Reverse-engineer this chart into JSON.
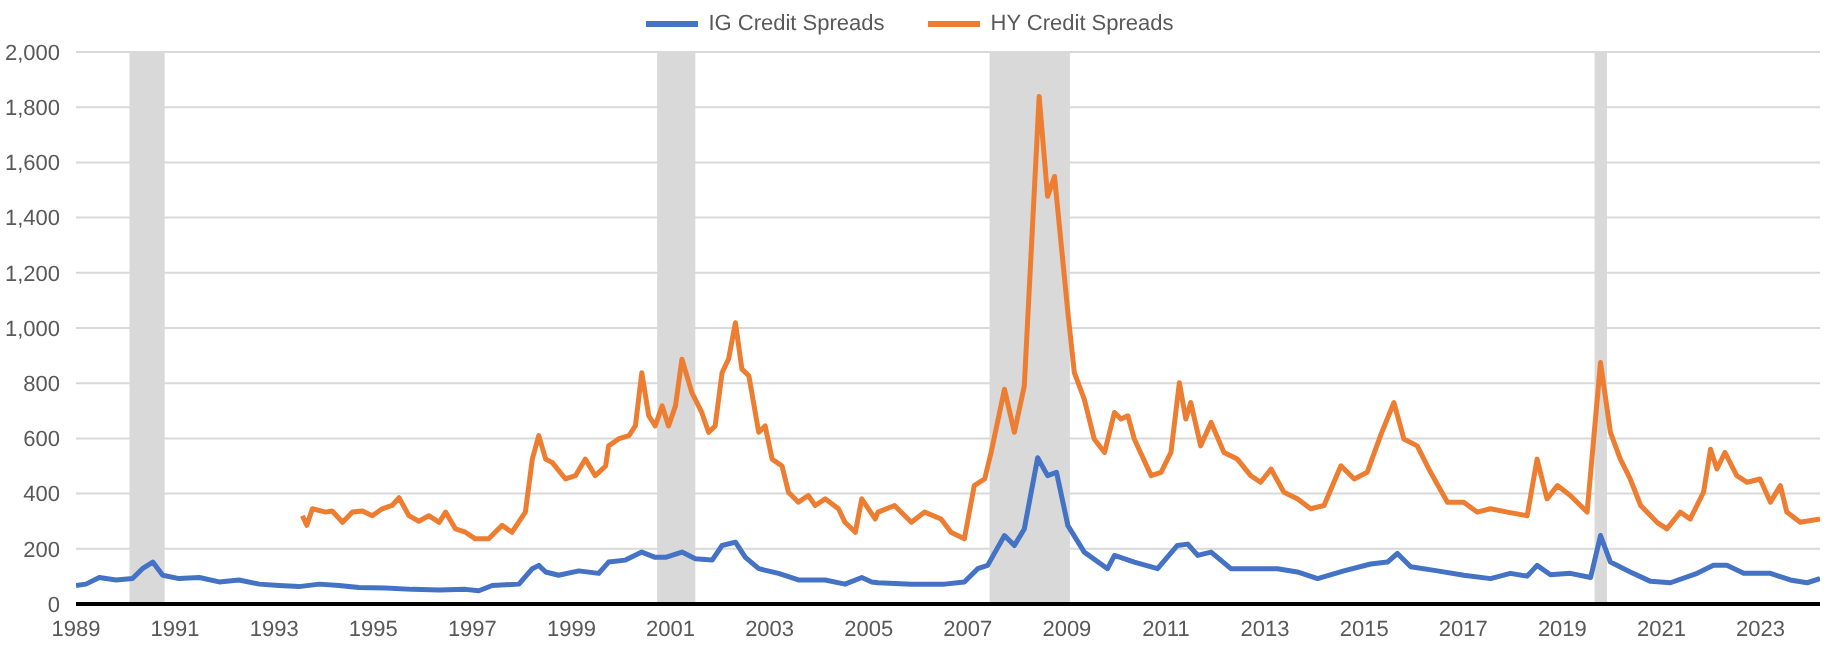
{
  "chart_data": {
    "type": "line",
    "legend": "top",
    "grid": "y",
    "marker": "none",
    "line_style": "solid",
    "xlim": [
      1989,
      2024.2
    ],
    "xticks": [
      1989,
      1991,
      1993,
      1995,
      1997,
      1999,
      2001,
      2003,
      2005,
      2007,
      2009,
      2011,
      2013,
      2015,
      2017,
      2019,
      2021,
      2023
    ],
    "ylim": [
      0,
      2000
    ],
    "yticks": [
      0,
      200,
      400,
      600,
      800,
      {
        "value": 1000,
        "label": "1,000"
      },
      {
        "value": 1200,
        "label": "1,200"
      },
      {
        "value": 1400,
        "label": "1,400"
      },
      {
        "value": 1600,
        "label": "1,600"
      },
      {
        "value": 1800,
        "label": "1,800"
      },
      {
        "value": 2000,
        "label": "2,000"
      }
    ],
    "bands": [
      {
        "axis": "x",
        "from": 1990.08,
        "to": 1990.79,
        "color": "#d9d9d9"
      },
      {
        "axis": "x",
        "from": 2000.73,
        "to": 2001.5,
        "color": "#d9d9d9"
      },
      {
        "axis": "x",
        "from": 2007.44,
        "to": 2009.06,
        "color": "#d9d9d9"
      },
      {
        "axis": "x",
        "from": 2019.65,
        "to": 2019.9,
        "color": "#d9d9d9"
      }
    ],
    "series": [
      {
        "name": "IG Credit Spreads",
        "color": "#4472c4",
        "x": [
          1989.0,
          1989.2,
          1989.47,
          1989.81,
          1990.14,
          1990.34,
          1990.55,
          1990.75,
          1991.08,
          1991.49,
          1991.89,
          1992.29,
          1992.7,
          1993.1,
          1993.5,
          1993.91,
          1994.31,
          1994.71,
          1995.25,
          1995.79,
          1996.33,
          1996.86,
          1997.13,
          1997.4,
          1997.94,
          1998.21,
          1998.34,
          1998.48,
          1998.74,
          1999.15,
          1999.55,
          1999.75,
          2000.09,
          2000.42,
          2000.69,
          2000.9,
          2001.23,
          2001.5,
          2001.84,
          2002.04,
          2002.31,
          2002.51,
          2002.78,
          2003.18,
          2003.58,
          2004.12,
          2004.52,
          2004.86,
          2005.06,
          2005.19,
          2005.86,
          2006.53,
          2006.93,
          2007.2,
          2007.4,
          2007.74,
          2007.94,
          2008.14,
          2008.41,
          2008.61,
          2008.79,
          2009.02,
          2009.35,
          2009.82,
          2009.96,
          2010.36,
          2010.83,
          2011.23,
          2011.44,
          2011.64,
          2011.91,
          2012.31,
          2012.85,
          2013.25,
          2013.65,
          2014.06,
          2014.59,
          2015.13,
          2015.47,
          2015.67,
          2015.94,
          2016.48,
          2017.01,
          2017.55,
          2017.95,
          2018.29,
          2018.49,
          2018.76,
          2019.16,
          2019.57,
          2019.77,
          2019.97,
          2020.37,
          2020.78,
          2021.18,
          2021.72,
          2022.05,
          2022.32,
          2022.66,
          2023.2,
          2023.6,
          2023.94,
          2024.2
        ],
        "values": [
          67,
          72,
          96,
          87,
          92,
          128,
          152,
          104,
          92,
          96,
          80,
          87,
          72,
          67,
          63,
          72,
          67,
          60,
          58,
          53,
          51,
          53,
          48,
          67,
          72,
          128,
          140,
          116,
          104,
          120,
          111,
          152,
          159,
          188,
          169,
          169,
          188,
          164,
          159,
          212,
          224,
          169,
          128,
          111,
          87,
          87,
          72,
          96,
          80,
          77,
          72,
          72,
          80,
          128,
          140,
          248,
          212,
          272,
          530,
          465,
          477,
          284,
          188,
          128,
          176,
          152,
          128,
          212,
          217,
          176,
          188,
          128,
          128,
          128,
          116,
          92,
          120,
          145,
          152,
          183,
          135,
          120,
          104,
          92,
          111,
          101,
          140,
          106,
          111,
          96,
          248,
          152,
          116,
          82,
          77,
          111,
          140,
          140,
          111,
          111,
          87,
          77,
          92
        ]
      },
      {
        "name": "HY Credit Spreads",
        "color": "#ed7d31",
        "x": [
          1993.57,
          1993.66,
          1993.77,
          1994.04,
          1994.17,
          1994.38,
          1994.58,
          1994.78,
          1994.98,
          1995.18,
          1995.38,
          1995.52,
          1995.72,
          1995.92,
          1996.12,
          1996.33,
          1996.46,
          1996.66,
          1996.86,
          1997.06,
          1997.33,
          1997.6,
          1997.8,
          1998.07,
          1998.21,
          1998.34,
          1998.48,
          1998.61,
          1998.88,
          1999.08,
          1999.28,
          1999.48,
          1999.69,
          1999.75,
          1999.95,
          2000.16,
          2000.29,
          2000.42,
          2000.56,
          2000.69,
          2000.83,
          2000.96,
          2001.1,
          2001.23,
          2001.43,
          2001.63,
          2001.77,
          2001.9,
          2002.04,
          2002.17,
          2002.31,
          2002.44,
          2002.58,
          2002.64,
          2002.78,
          2002.91,
          2003.05,
          2003.25,
          2003.38,
          2003.58,
          2003.78,
          2003.92,
          2004.12,
          2004.39,
          2004.52,
          2004.73,
          2004.86,
          2005.13,
          2005.19,
          2005.52,
          2005.86,
          2006.13,
          2006.46,
          2006.66,
          2006.93,
          2007.13,
          2007.34,
          2007.47,
          2007.74,
          2007.94,
          2008.14,
          2008.44,
          2008.61,
          2008.75,
          2009.02,
          2009.15,
          2009.35,
          2009.55,
          2009.76,
          2009.96,
          2010.09,
          2010.23,
          2010.36,
          2010.7,
          2010.9,
          2011.1,
          2011.27,
          2011.4,
          2011.5,
          2011.7,
          2011.91,
          2012.17,
          2012.44,
          2012.71,
          2012.91,
          2013.12,
          2013.38,
          2013.65,
          2013.92,
          2014.19,
          2014.53,
          2014.8,
          2015.06,
          2015.33,
          2015.6,
          2015.8,
          2016.07,
          2016.34,
          2016.68,
          2017.01,
          2017.28,
          2017.55,
          2017.89,
          2018.29,
          2018.49,
          2018.69,
          2018.9,
          2019.16,
          2019.5,
          2019.77,
          2019.97,
          2020.17,
          2020.37,
          2020.58,
          2020.91,
          2021.11,
          2021.38,
          2021.58,
          2021.85,
          2021.99,
          2022.12,
          2022.28,
          2022.52,
          2022.73,
          2022.99,
          2023.2,
          2023.4,
          2023.53,
          2023.8,
          2024.2
        ],
        "values": [
          320,
          285,
          345,
          333,
          337,
          296,
          333,
          337,
          320,
          345,
          357,
          385,
          320,
          300,
          320,
          296,
          333,
          272,
          260,
          236,
          236,
          285,
          260,
          333,
          525,
          610,
          525,
          513,
          453,
          465,
          525,
          465,
          500,
          573,
          598,
          610,
          645,
          838,
          682,
          645,
          718,
          645,
          718,
          887,
          766,
          694,
          622,
          645,
          838,
          887,
          1019,
          851,
          827,
          766,
          622,
          645,
          525,
          500,
          405,
          369,
          393,
          357,
          381,
          345,
          296,
          260,
          381,
          308,
          333,
          357,
          296,
          333,
          308,
          260,
          236,
          429,
          453,
          549,
          778,
          622,
          790,
          1839,
          1477,
          1549,
          1055,
          838,
          742,
          598,
          549,
          694,
          670,
          682,
          598,
          465,
          477,
          549,
          802,
          670,
          730,
          573,
          658,
          549,
          525,
          465,
          441,
          489,
          405,
          381,
          345,
          357,
          501,
          453,
          477,
          610,
          730,
          598,
          573,
          477,
          369,
          369,
          333,
          345,
          333,
          320,
          525,
          381,
          429,
          393,
          333,
          875,
          622,
          525,
          453,
          357,
          296,
          272,
          333,
          308,
          405,
          561,
          489,
          549,
          465,
          441,
          453,
          369,
          429,
          333,
          296,
          308
        ]
      }
    ]
  }
}
